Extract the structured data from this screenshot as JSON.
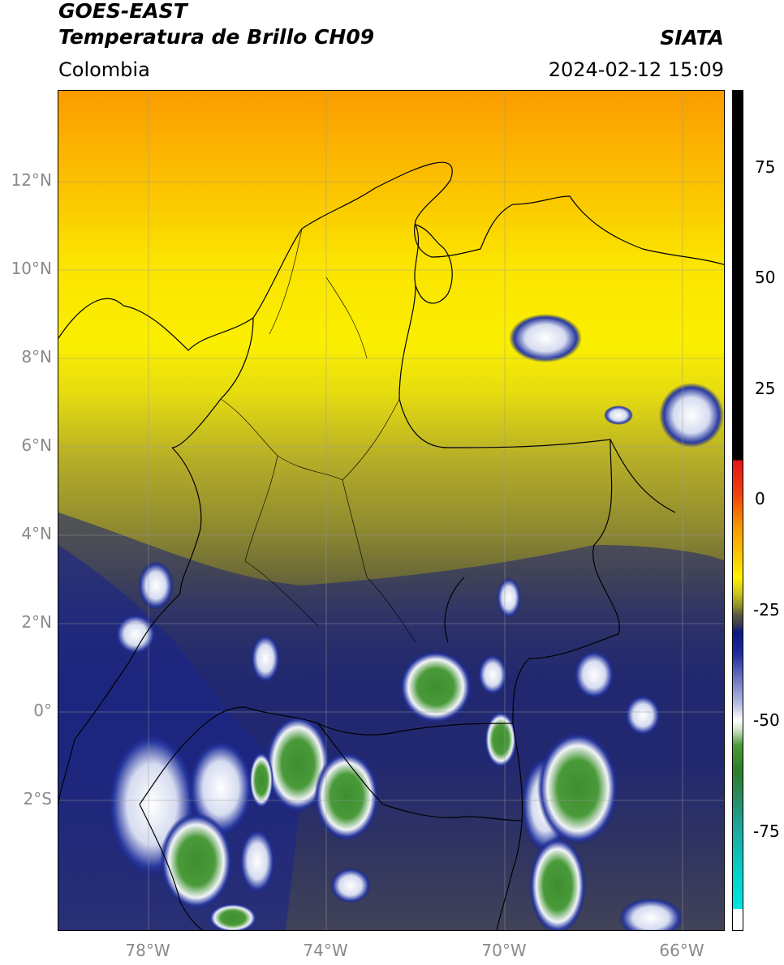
{
  "header": {
    "line1": "GOES-EAST",
    "line2": "Temperatura de Brillo CH09",
    "region": "Colombia",
    "brand": "SIATA",
    "timestamp": "2024-02-12 15:09"
  },
  "axes": {
    "lat_labels": [
      "12°N",
      "10°N",
      "8°N",
      "6°N",
      "4°N",
      "2°N",
      "0°",
      "2°S"
    ],
    "lon_labels": [
      "78°W",
      "74°W",
      "70°W",
      "66°W"
    ]
  },
  "colorbar": {
    "tick_labels": [
      "75",
      "50",
      "25",
      "0",
      "-25",
      "-50",
      "-75"
    ],
    "colors": {
      "black": "#000000",
      "red": "#e0141a",
      "orange": "#f59a00",
      "yellow": "#fff200",
      "olive": "#8a8a2a",
      "grey": "#3b3e50",
      "navy": "#0b1a80",
      "white": "#ffffff",
      "green": "#3a8b2a",
      "teal": "#1fa8a0",
      "cyan": "#00e5e0"
    }
  },
  "map": {
    "colors": {
      "sea_north": "#fb9c00",
      "yellow": "#fbef00",
      "yellow_olive": "#c9c21a",
      "olive": "#8f8a30",
      "slate": "#42455a",
      "navy": "#152080",
      "cloud_white": "#e8ecf5",
      "cloud_green": "#3e8e30",
      "outline": "#000000"
    }
  }
}
